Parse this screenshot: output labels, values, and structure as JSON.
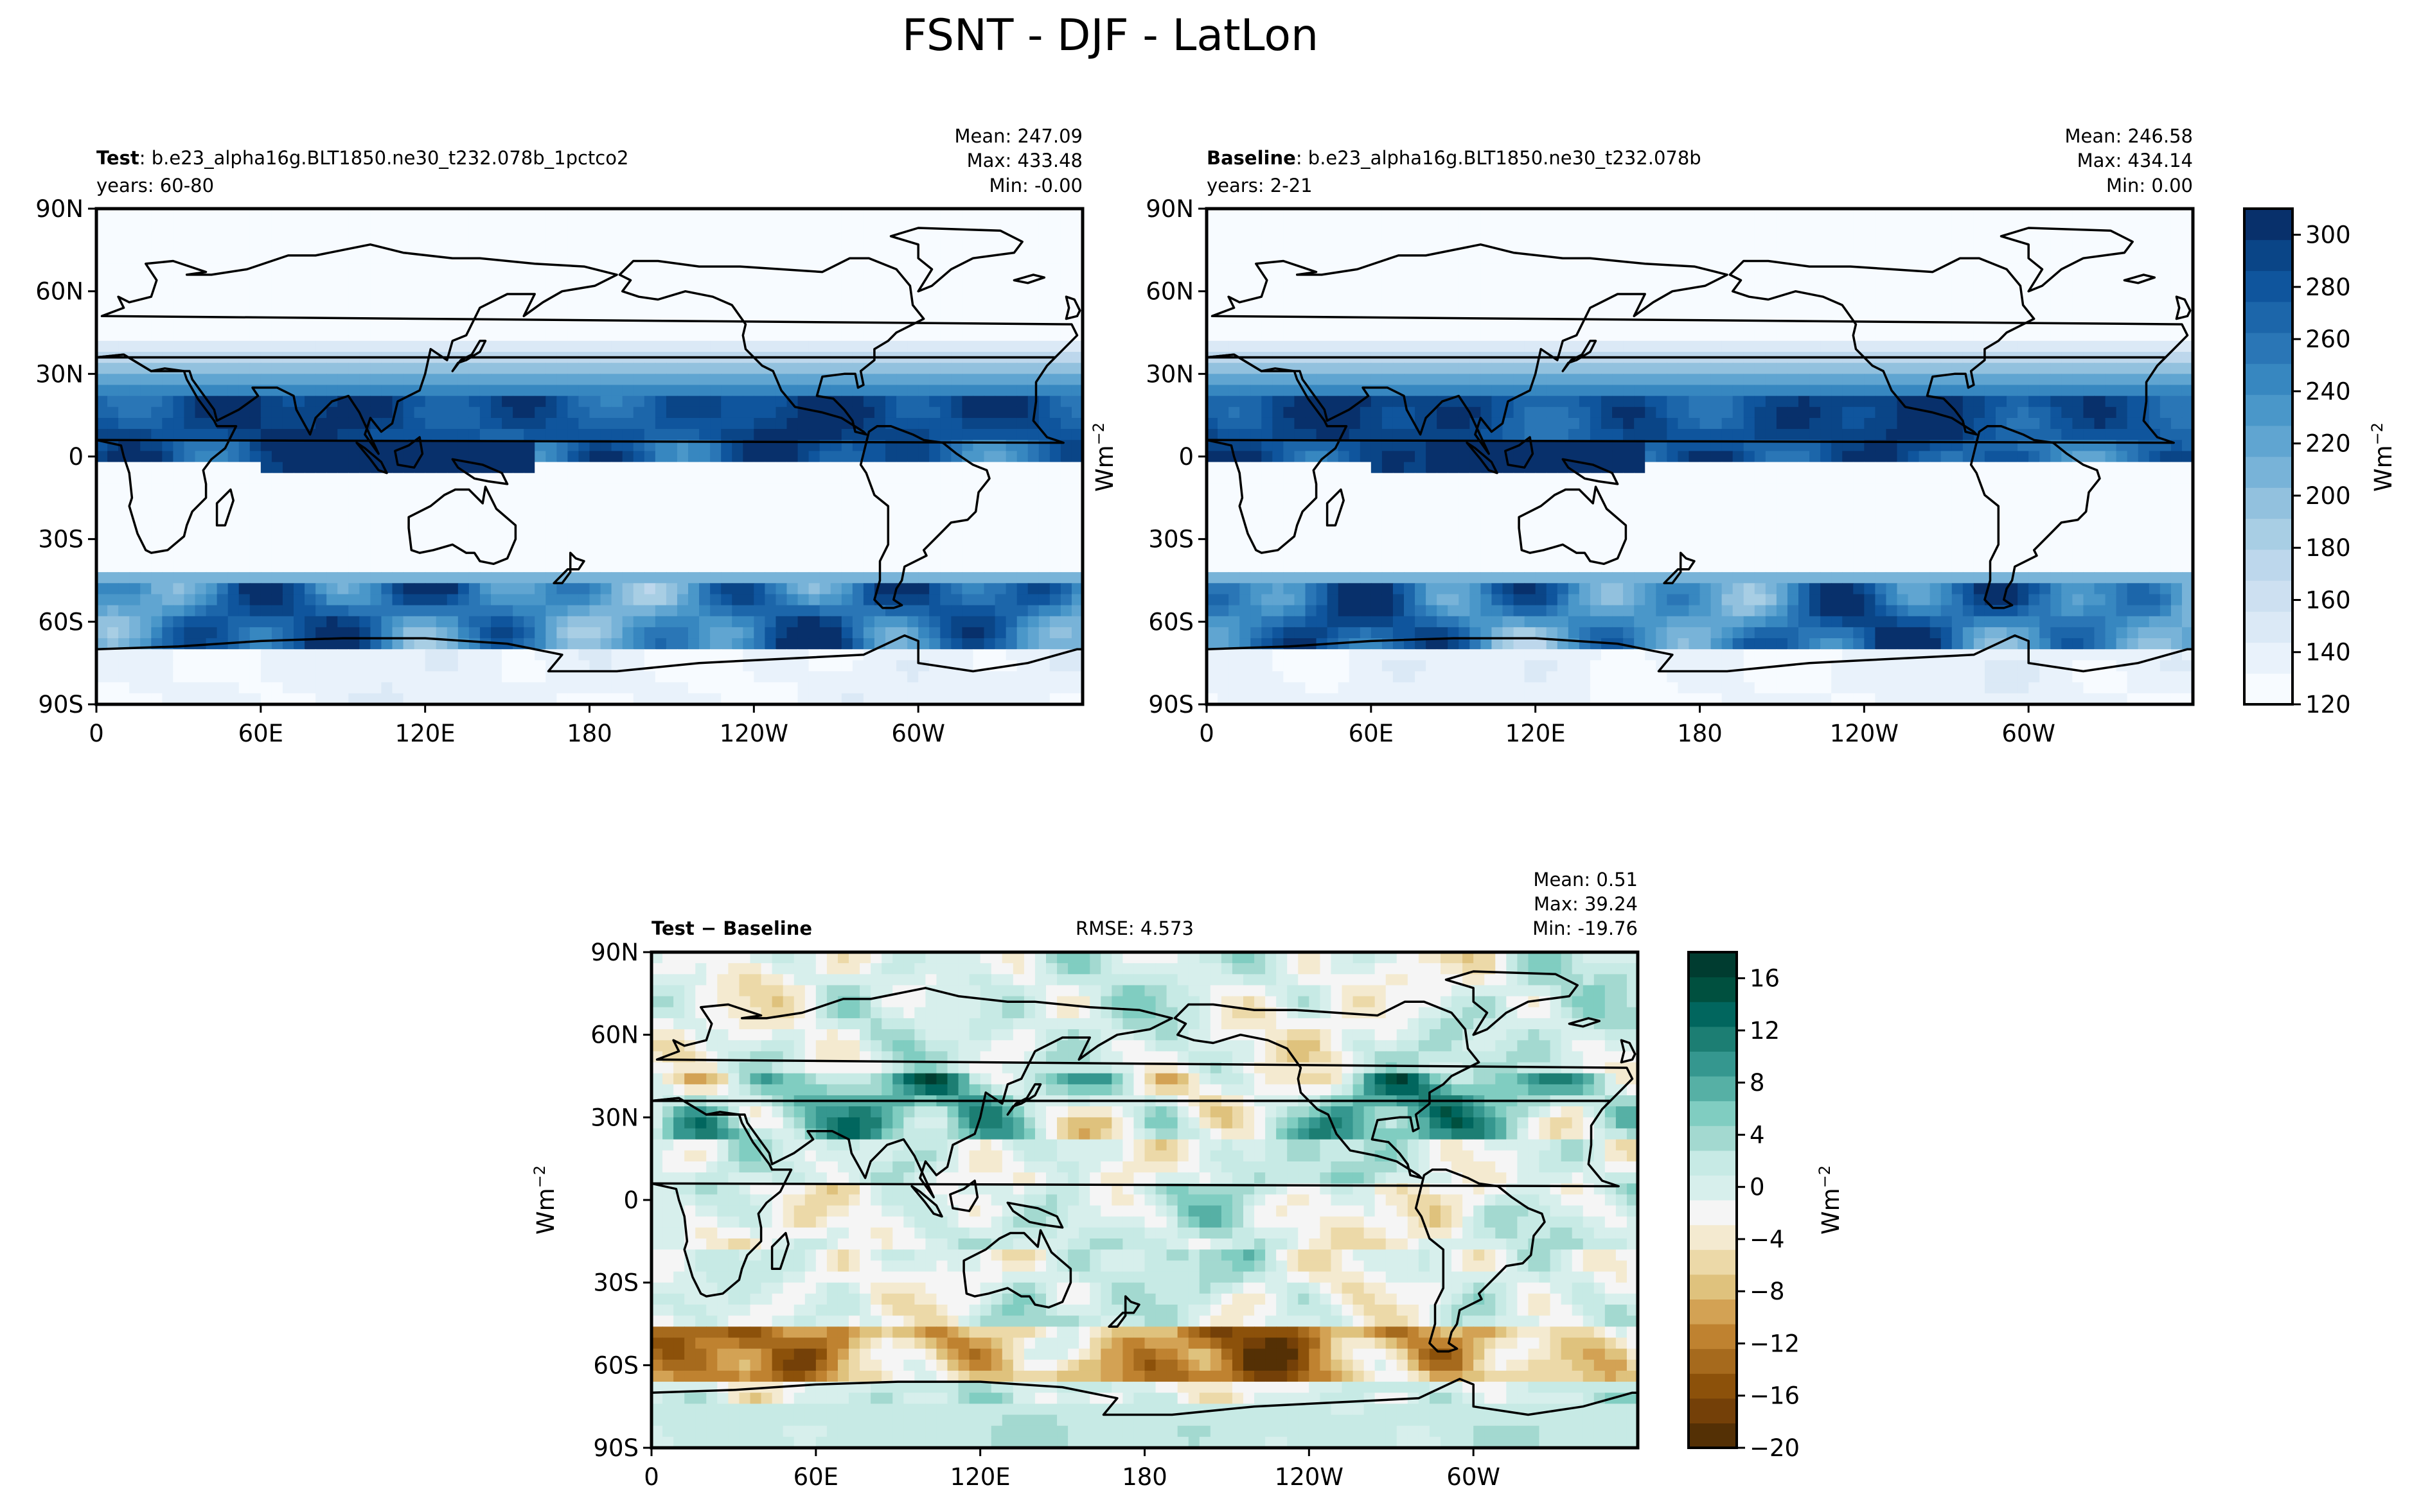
{
  "figure": {
    "title": "FSNT - DJF - LatLon"
  },
  "colors": {
    "blues": [
      "#f7fbff",
      "#e9f2fb",
      "#dbe9f6",
      "#cde0f1",
      "#bdd7ec",
      "#a8cee4",
      "#92c1de",
      "#78b3d8",
      "#60a5d1",
      "#4a97c9",
      "#3787c0",
      "#2a76b6",
      "#1c66aa",
      "#0f559d",
      "#0a4587",
      "#08306b"
    ],
    "diverging": [
      "#543005",
      "#744008",
      "#8c510a",
      "#a66a1d",
      "#bf8230",
      "#d3a254",
      "#dfc27d",
      "#ecd9a8",
      "#f4ead0",
      "#f5f5f5",
      "#d7efec",
      "#c7eae5",
      "#a3d9d0",
      "#80cdc1",
      "#56b0a5",
      "#35978f",
      "#1c7e73",
      "#01665e",
      "#00503f",
      "#003c30"
    ],
    "coast": "#000000"
  },
  "chart_data": [
    {
      "type": "heatmap",
      "panel": "test",
      "label_bold": "Test",
      "label_rest": ": b.e23_alpha16g.BLT1850.ne30_t232.078b_1pctco2",
      "years": "years: 60-80",
      "stats": [
        "Mean: 247.09",
        "Max: 433.48",
        "Min: -0.00"
      ],
      "xticks": [
        "0",
        "60E",
        "120E",
        "180",
        "120W",
        "60W"
      ],
      "yticks": [
        "90N",
        "60N",
        "30N",
        "0",
        "30S",
        "60S",
        "90S"
      ],
      "ylabel": "Wm",
      "ylabel_sup": "−2",
      "xlim": [
        0,
        360
      ],
      "ylim": [
        -90,
        90
      ],
      "value_range": [
        120,
        310
      ]
    },
    {
      "type": "heatmap",
      "panel": "baseline",
      "label_bold": "Baseline",
      "label_rest": ": b.e23_alpha16g.BLT1850.ne30_t232.078b",
      "years": "years: 2-21",
      "stats": [
        "Mean: 246.58",
        "Max: 434.14",
        "Min:  0.00"
      ],
      "xticks": [
        "0",
        "60E",
        "120E",
        "180",
        "120W",
        "60W"
      ],
      "yticks": [
        "90N",
        "60N",
        "30N",
        "0",
        "30S",
        "60S",
        "90S"
      ],
      "xlim": [
        0,
        360
      ],
      "ylim": [
        -90,
        90
      ],
      "colorbar": {
        "ticks": [
          120,
          140,
          160,
          180,
          200,
          220,
          240,
          260,
          280,
          300
        ],
        "label": "Wm",
        "label_sup": "−2",
        "range": [
          120,
          310
        ]
      }
    },
    {
      "type": "heatmap",
      "panel": "diff",
      "label_bold": "Test − Baseline",
      "rmse": "RMSE: 4.573",
      "stats": [
        "Mean:  0.51",
        "Max: 39.24",
        "Min: -19.76"
      ],
      "xticks": [
        "0",
        "60E",
        "120E",
        "180",
        "120W",
        "60W"
      ],
      "yticks": [
        "90N",
        "60N",
        "30N",
        "0",
        "30S",
        "60S",
        "90S"
      ],
      "ylabel": "Wm",
      "ylabel_sup": "−2",
      "xlim": [
        0,
        360
      ],
      "ylim": [
        -90,
        90
      ],
      "colorbar": {
        "ticks": [
          16,
          12,
          8,
          4,
          0,
          -4,
          -8,
          -12,
          -16,
          -20
        ],
        "label": "Wm",
        "label_sup": "−2",
        "range": [
          -20,
          18
        ]
      }
    }
  ]
}
